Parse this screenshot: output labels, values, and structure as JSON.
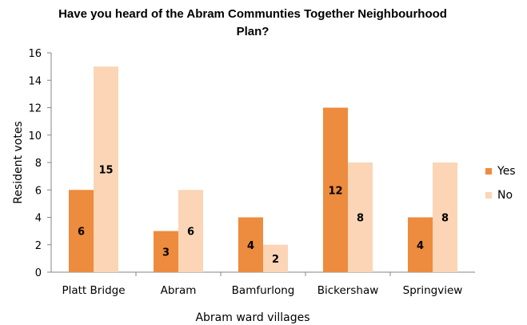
{
  "chart_data": {
    "type": "bar",
    "title_line1": "Have you heard of the Abram Communties Together Neighbourhood",
    "title_line2": "Plan?",
    "xlabel": "Abram ward villages",
    "ylabel": "Resident votes",
    "categories": [
      "Platt Bridge",
      "Abram",
      "Bamfurlong",
      "Bickershaw",
      "Springview"
    ],
    "series": [
      {
        "name": "Yes",
        "values": [
          6,
          3,
          4,
          12,
          4
        ],
        "color": "#ED8B3E"
      },
      {
        "name": "No",
        "values": [
          15,
          6,
          2,
          8,
          8
        ],
        "color": "#FBD5B5"
      }
    ],
    "ylim": [
      0,
      16
    ],
    "yticks": [
      "0",
      "2",
      "4",
      "6",
      "8",
      "10",
      "12",
      "14",
      "16"
    ],
    "grid": false,
    "legend_position": "right",
    "data_labels": true
  }
}
